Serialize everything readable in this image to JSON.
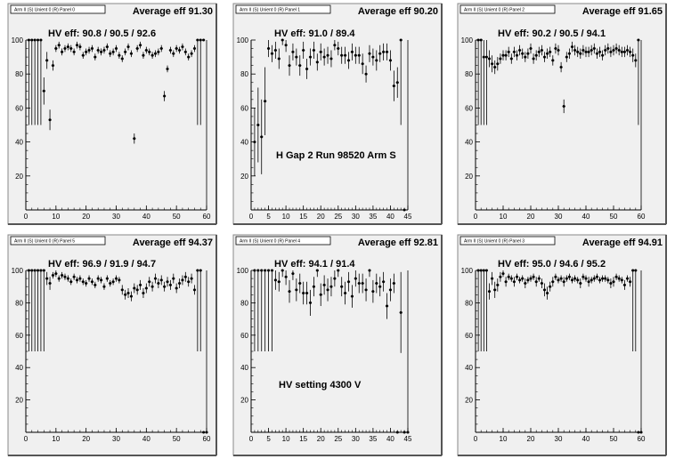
{
  "chart_data": [
    {
      "type": "scatter",
      "title_box": "Arm II (S) Unient 0 (R) Panel 0",
      "average_label": "Average eff 91.30",
      "hv_label": "HV eff:   90.8 / 90.5 / 92.6",
      "annotation": "",
      "xlim": [
        0,
        60
      ],
      "ylim": [
        0,
        100
      ],
      "xticks": [
        0,
        10,
        20,
        30,
        40,
        50,
        60
      ],
      "yticks": [
        20,
        40,
        60,
        80,
        100
      ],
      "x_end": 60,
      "x": [
        1,
        2,
        3,
        4,
        5,
        6,
        7,
        8,
        9,
        10,
        11,
        12,
        13,
        14,
        15,
        16,
        17,
        18,
        19,
        20,
        21,
        22,
        23,
        24,
        25,
        26,
        27,
        28,
        29,
        30,
        31,
        32,
        33,
        34,
        35,
        36,
        37,
        38,
        39,
        40,
        41,
        42,
        43,
        44,
        45,
        46,
        47,
        48,
        49,
        50,
        51,
        52,
        53,
        54,
        55,
        56,
        57,
        58,
        59
      ],
      "y": [
        100,
        100,
        100,
        100,
        100,
        70,
        88,
        53,
        85,
        95,
        97,
        93,
        95,
        96,
        95,
        93,
        97,
        96,
        91,
        93,
        94,
        95,
        90,
        94,
        93,
        94,
        96,
        92,
        93,
        95,
        91,
        89,
        93,
        96,
        92,
        42,
        95,
        97,
        91,
        94,
        93,
        91,
        92,
        93,
        95,
        67,
        83,
        94,
        92,
        95,
        94,
        96,
        93,
        90,
        92,
        95,
        100,
        100,
        100
      ],
      "err": [
        50,
        50,
        50,
        50,
        50,
        8,
        5,
        6,
        3,
        2,
        2,
        2,
        2,
        2,
        2,
        2,
        2,
        2,
        2,
        2,
        2,
        2,
        2,
        2,
        2,
        2,
        2,
        2,
        2,
        2,
        2,
        2,
        2,
        2,
        2,
        3,
        2,
        2,
        2,
        2,
        2,
        2,
        2,
        2,
        2,
        3,
        2,
        2,
        2,
        2,
        2,
        2,
        2,
        2,
        2,
        2,
        50,
        50,
        0
      ]
    },
    {
      "type": "scatter",
      "title_box": "Arm II (S) Unient 0 (R) Panel 1",
      "average_label": "Average eff 90.20",
      "hv_label": "HV eff:   91.0 / 89.4",
      "annotation": "H Gap 2 Run 98520 Arm S",
      "xlim": [
        0,
        45
      ],
      "ylim": [
        0,
        100
      ],
      "xticks": [
        0,
        5,
        10,
        15,
        20,
        25,
        30,
        35,
        40,
        45
      ],
      "yticks": [
        20,
        40,
        60,
        80,
        100
      ],
      "x_end": 45,
      "x": [
        1,
        2,
        3,
        4,
        5,
        6,
        7,
        8,
        9,
        10,
        11,
        12,
        13,
        14,
        15,
        16,
        17,
        18,
        19,
        20,
        21,
        22,
        23,
        24,
        25,
        26,
        27,
        28,
        29,
        30,
        31,
        32,
        33,
        34,
        35,
        36,
        37,
        38,
        39,
        40,
        41,
        42,
        43,
        44
      ],
      "y": [
        40,
        50,
        43,
        64,
        95,
        92,
        94,
        89,
        100,
        97,
        85,
        93,
        90,
        85,
        94,
        83,
        90,
        94,
        87,
        93,
        90,
        91,
        89,
        97,
        95,
        91,
        91,
        88,
        93,
        91,
        91,
        86,
        80,
        92,
        90,
        88,
        92,
        93,
        93,
        88,
        73,
        75,
        100,
        0
      ],
      "err": [
        20,
        22,
        22,
        20,
        5,
        5,
        5,
        6,
        3,
        4,
        6,
        5,
        5,
        6,
        5,
        6,
        5,
        5,
        5,
        5,
        5,
        5,
        5,
        3,
        4,
        5,
        5,
        5,
        5,
        5,
        5,
        6,
        5,
        5,
        5,
        6,
        5,
        5,
        5,
        6,
        9,
        9,
        50,
        0
      ]
    },
    {
      "type": "scatter",
      "title_box": "Arm II (S) Unient 0 (R) Panel 2",
      "average_label": "Average eff 91.65",
      "hv_label": "HV eff:   90.2 / 90.5 / 94.1",
      "annotation": "",
      "xlim": [
        0,
        60
      ],
      "ylim": [
        0,
        100
      ],
      "xticks": [
        0,
        10,
        20,
        30,
        40,
        50,
        60
      ],
      "yticks": [
        20,
        40,
        60,
        80,
        100
      ],
      "x_end": 60,
      "x": [
        1,
        2,
        3,
        4,
        5,
        6,
        7,
        8,
        9,
        10,
        11,
        12,
        13,
        14,
        15,
        16,
        17,
        18,
        19,
        20,
        21,
        22,
        23,
        24,
        25,
        26,
        27,
        28,
        29,
        30,
        31,
        32,
        33,
        34,
        35,
        36,
        37,
        38,
        39,
        40,
        41,
        42,
        43,
        44,
        45,
        46,
        47,
        48,
        49,
        50,
        51,
        52,
        53,
        54,
        55,
        56,
        57,
        58,
        59
      ],
      "y": [
        100,
        100,
        90,
        90,
        89,
        86,
        84,
        86,
        89,
        91,
        91,
        93,
        89,
        93,
        91,
        94,
        92,
        90,
        92,
        95,
        89,
        91,
        93,
        94,
        90,
        92,
        93,
        88,
        95,
        94,
        84,
        61,
        90,
        92,
        96,
        94,
        93,
        92,
        94,
        93,
        93,
        94,
        95,
        92,
        93,
        91,
        94,
        95,
        93,
        94,
        95,
        94,
        93,
        93,
        94,
        93,
        91,
        88,
        100
      ],
      "err": [
        50,
        50,
        40,
        40,
        5,
        5,
        4,
        4,
        3,
        3,
        3,
        3,
        3,
        3,
        3,
        3,
        3,
        3,
        3,
        3,
        3,
        3,
        3,
        3,
        3,
        3,
        3,
        3,
        3,
        3,
        3,
        4,
        3,
        3,
        3,
        3,
        3,
        3,
        3,
        3,
        3,
        3,
        3,
        3,
        3,
        3,
        3,
        3,
        3,
        3,
        3,
        3,
        3,
        3,
        3,
        3,
        4,
        4,
        50
      ]
    },
    {
      "type": "scatter",
      "title_box": "Arm II (S) Unient 0 (R) Panel 5",
      "average_label": "Average eff 94.37",
      "hv_label": "HV eff:   96.9 / 91.9 / 94.7",
      "annotation": "",
      "xlim": [
        0,
        60
      ],
      "ylim": [
        0,
        100
      ],
      "xticks": [
        0,
        10,
        20,
        30,
        40,
        50,
        60
      ],
      "yticks": [
        20,
        40,
        60,
        80,
        100
      ],
      "x_end": 60,
      "x": [
        1,
        2,
        3,
        4,
        5,
        6,
        7,
        8,
        9,
        10,
        11,
        12,
        13,
        14,
        15,
        16,
        17,
        18,
        19,
        20,
        21,
        22,
        23,
        24,
        25,
        26,
        27,
        28,
        29,
        30,
        31,
        32,
        33,
        34,
        35,
        36,
        37,
        38,
        39,
        40,
        41,
        42,
        43,
        44,
        45,
        46,
        47,
        48,
        49,
        50,
        51,
        52,
        53,
        54,
        55,
        56,
        57,
        58,
        59,
        60
      ],
      "y": [
        100,
        100,
        100,
        100,
        100,
        100,
        95,
        92,
        97,
        98,
        95,
        97,
        96,
        95,
        93,
        96,
        94,
        95,
        93,
        92,
        95,
        93,
        91,
        95,
        94,
        90,
        95,
        92,
        93,
        95,
        94,
        88,
        85,
        86,
        84,
        89,
        88,
        91,
        86,
        89,
        93,
        90,
        95,
        92,
        94,
        90,
        93,
        91,
        95,
        89,
        92,
        94,
        96,
        93,
        95,
        88,
        100,
        100,
        0,
        0
      ],
      "err": [
        50,
        50,
        50,
        50,
        50,
        50,
        4,
        4,
        2,
        2,
        2,
        2,
        2,
        2,
        2,
        2,
        2,
        2,
        2,
        2,
        2,
        2,
        2,
        2,
        2,
        2,
        2,
        2,
        2,
        2,
        2,
        3,
        3,
        3,
        3,
        3,
        3,
        3,
        3,
        3,
        3,
        3,
        3,
        3,
        3,
        3,
        3,
        3,
        3,
        3,
        3,
        3,
        3,
        3,
        3,
        3,
        50,
        50,
        0,
        0
      ]
    },
    {
      "type": "scatter",
      "title_box": "Arm II (S) Unient 0 (R) Panel 4",
      "average_label": "Average eff 92.81",
      "hv_label": "HV eff:   94.1 / 91.4",
      "annotation": "HV setting 4300 V",
      "xlim": [
        0,
        45
      ],
      "ylim": [
        0,
        100
      ],
      "xticks": [
        0,
        5,
        10,
        15,
        20,
        25,
        30,
        35,
        40,
        45
      ],
      "yticks": [
        20,
        40,
        60,
        80,
        100
      ],
      "x_end": 45,
      "x": [
        1,
        2,
        3,
        4,
        5,
        6,
        7,
        8,
        9,
        10,
        11,
        12,
        13,
        14,
        15,
        16,
        17,
        18,
        19,
        20,
        21,
        22,
        23,
        24,
        25,
        26,
        27,
        28,
        29,
        30,
        31,
        32,
        33,
        34,
        35,
        36,
        37,
        38,
        39,
        40,
        41,
        42,
        43,
        44,
        45
      ],
      "y": [
        100,
        100,
        100,
        100,
        100,
        100,
        94,
        93,
        100,
        96,
        87,
        98,
        88,
        92,
        86,
        86,
        80,
        90,
        100,
        85,
        91,
        88,
        90,
        95,
        100,
        90,
        86,
        93,
        84,
        95,
        92,
        92,
        88,
        100,
        87,
        92,
        90,
        93,
        78,
        88,
        92,
        0,
        74,
        0,
        0
      ],
      "err": [
        50,
        50,
        50,
        50,
        50,
        50,
        6,
        6,
        4,
        5,
        7,
        4,
        7,
        6,
        7,
        7,
        8,
        6,
        4,
        7,
        6,
        7,
        6,
        5,
        4,
        6,
        7,
        6,
        7,
        5,
        6,
        6,
        7,
        4,
        7,
        6,
        6,
        6,
        8,
        7,
        6,
        0,
        25,
        0,
        0
      ]
    },
    {
      "type": "scatter",
      "title_box": "Arm II (S) Unient 0 (R) Panel 3",
      "average_label": "Average eff 94.91",
      "hv_label": "HV eff:   95.0 / 94.6 / 95.2",
      "annotation": "",
      "xlim": [
        0,
        60
      ],
      "ylim": [
        0,
        100
      ],
      "xticks": [
        0,
        10,
        20,
        30,
        40,
        50,
        60
      ],
      "yticks": [
        20,
        40,
        60,
        80,
        100
      ],
      "x_end": 60,
      "x": [
        1,
        2,
        3,
        4,
        5,
        6,
        7,
        8,
        9,
        10,
        11,
        12,
        13,
        14,
        15,
        16,
        17,
        18,
        19,
        20,
        21,
        22,
        23,
        24,
        25,
        26,
        27,
        28,
        29,
        30,
        31,
        32,
        33,
        34,
        35,
        36,
        37,
        38,
        39,
        40,
        41,
        42,
        43,
        44,
        45,
        46,
        47,
        48,
        49,
        50,
        51,
        52,
        53,
        54,
        55,
        56,
        57,
        58,
        59,
        60
      ],
      "y": [
        100,
        100,
        100,
        100,
        87,
        95,
        88,
        91,
        96,
        98,
        93,
        96,
        95,
        93,
        96,
        94,
        95,
        92,
        94,
        95,
        96,
        93,
        95,
        92,
        88,
        86,
        90,
        93,
        96,
        94,
        95,
        93,
        95,
        96,
        94,
        95,
        94,
        92,
        96,
        95,
        93,
        94,
        95,
        96,
        94,
        95,
        95,
        94,
        92,
        93,
        96,
        95,
        94,
        91,
        95,
        93,
        100,
        100,
        0,
        0
      ],
      "err": [
        50,
        50,
        50,
        50,
        5,
        4,
        5,
        4,
        3,
        2,
        3,
        2,
        2,
        3,
        2,
        2,
        2,
        3,
        2,
        2,
        2,
        3,
        2,
        3,
        4,
        4,
        3,
        3,
        2,
        2,
        2,
        3,
        2,
        2,
        2,
        2,
        2,
        3,
        2,
        2,
        3,
        2,
        2,
        2,
        2,
        2,
        2,
        2,
        3,
        3,
        2,
        2,
        2,
        3,
        2,
        3,
        50,
        50,
        0,
        0
      ]
    }
  ]
}
